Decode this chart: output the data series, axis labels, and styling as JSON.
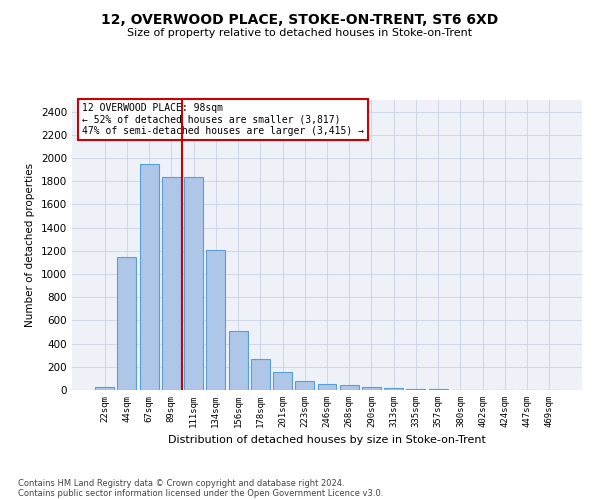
{
  "title": "12, OVERWOOD PLACE, STOKE-ON-TRENT, ST6 6XD",
  "subtitle": "Size of property relative to detached houses in Stoke-on-Trent",
  "xlabel": "Distribution of detached houses by size in Stoke-on-Trent",
  "ylabel": "Number of detached properties",
  "categories": [
    "22sqm",
    "44sqm",
    "67sqm",
    "89sqm",
    "111sqm",
    "134sqm",
    "156sqm",
    "178sqm",
    "201sqm",
    "223sqm",
    "246sqm",
    "268sqm",
    "290sqm",
    "313sqm",
    "335sqm",
    "357sqm",
    "380sqm",
    "402sqm",
    "424sqm",
    "447sqm",
    "469sqm"
  ],
  "values": [
    30,
    1150,
    1950,
    1840,
    1840,
    1210,
    510,
    265,
    155,
    80,
    50,
    45,
    25,
    20,
    12,
    5,
    2,
    0,
    2,
    0,
    0
  ],
  "bar_color": "#aec6e8",
  "bar_edge_color": "#5a9fd4",
  "red_line_x": 3.5,
  "annotation_text": "12 OVERWOOD PLACE: 98sqm\n← 52% of detached houses are smaller (3,817)\n47% of semi-detached houses are larger (3,415) →",
  "annotation_box_color": "#ffffff",
  "annotation_box_edge": "#cc0000",
  "ylim": [
    0,
    2500
  ],
  "yticks": [
    0,
    200,
    400,
    600,
    800,
    1000,
    1200,
    1400,
    1600,
    1800,
    2000,
    2200,
    2400
  ],
  "grid_color": "#d0d8e8",
  "bg_color": "#eef2f8",
  "footer1": "Contains HM Land Registry data © Crown copyright and database right 2024.",
  "footer2": "Contains public sector information licensed under the Open Government Licence v3.0."
}
